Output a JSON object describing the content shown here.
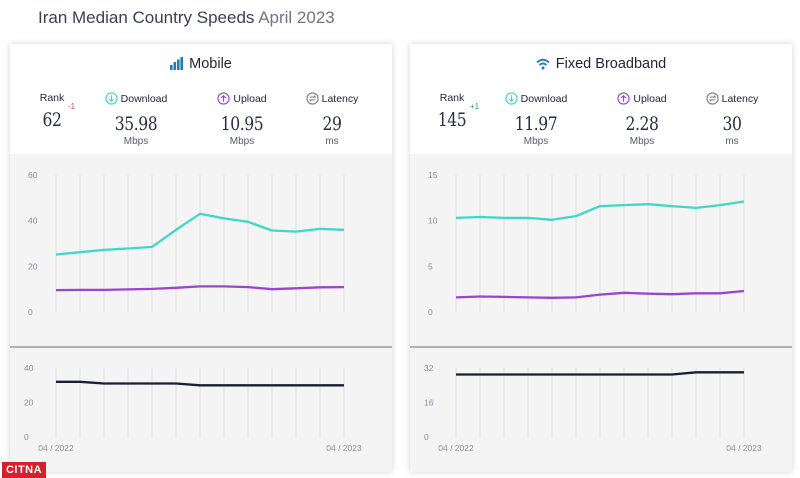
{
  "header": {
    "title": "Iran Median Country Speeds",
    "date": "April 2023"
  },
  "colors": {
    "download": "#3fd8c6",
    "upload": "#9b45cf",
    "latency": "#1b1d33"
  },
  "panels": [
    {
      "title": "Mobile",
      "icon": "signal-bars-icon",
      "metrics": {
        "rank": {
          "label": "Rank",
          "value": "62",
          "delta": "-1"
        },
        "download": {
          "label": "Download",
          "value": "35.98",
          "unit": "Mbps"
        },
        "upload": {
          "label": "Upload",
          "value": "10.95",
          "unit": "Mbps"
        },
        "latency": {
          "label": "Latency",
          "value": "29",
          "unit": "ms"
        }
      }
    },
    {
      "title": "Fixed Broadband",
      "icon": "wifi-icon",
      "metrics": {
        "rank": {
          "label": "Rank",
          "value": "145",
          "delta": "+1"
        },
        "download": {
          "label": "Download",
          "value": "11.97",
          "unit": "Mbps"
        },
        "upload": {
          "label": "Upload",
          "value": "2.28",
          "unit": "Mbps"
        },
        "latency": {
          "label": "Latency",
          "value": "30",
          "unit": "ms"
        }
      }
    }
  ],
  "chart_data": [
    {
      "type": "line",
      "panel": "Mobile",
      "x": [
        "04 / 2022",
        "05 / 2022",
        "06 / 2022",
        "07 / 2022",
        "08 / 2022",
        "09 / 2022",
        "10 / 2022",
        "11 / 2022",
        "12 / 2022",
        "01 / 2023",
        "02 / 2023",
        "03 / 2023",
        "04 / 2023"
      ],
      "x_tick_labels": [
        "04 / 2022",
        "04 / 2023"
      ],
      "ylim": [
        0,
        60
      ],
      "y_ticks": [
        "0",
        "20",
        "40",
        "60"
      ],
      "series": [
        {
          "name": "Download",
          "values": [
            25.2,
            26.2,
            27.2,
            27.8,
            28.5,
            36,
            43,
            41,
            39.5,
            35.7,
            35.2,
            36.4,
            36
          ]
        },
        {
          "name": "Upload",
          "values": [
            9.6,
            9.7,
            9.7,
            9.9,
            10.1,
            10.6,
            11.2,
            11.2,
            10.9,
            10,
            10.4,
            10.8,
            10.9
          ]
        }
      ],
      "latency": {
        "ylim": [
          0,
          40
        ],
        "y_ticks": [
          "0",
          "20",
          "40"
        ],
        "values": [
          32,
          32,
          31,
          31,
          31,
          31,
          30,
          30,
          30,
          30,
          30,
          30,
          30
        ]
      }
    },
    {
      "type": "line",
      "panel": "Fixed Broadband",
      "x": [
        "04 / 2022",
        "05 / 2022",
        "06 / 2022",
        "07 / 2022",
        "08 / 2022",
        "09 / 2022",
        "10 / 2022",
        "11 / 2022",
        "12 / 2022",
        "01 / 2023",
        "02 / 2023",
        "03 / 2023",
        "04 / 2023"
      ],
      "x_tick_labels": [
        "04 / 2022",
        "04 / 2023"
      ],
      "ylim": [
        0,
        15
      ],
      "y_ticks": [
        "0",
        "5",
        "10",
        "15"
      ],
      "series": [
        {
          "name": "Download",
          "values": [
            10.3,
            10.4,
            10.3,
            10.3,
            10.1,
            10.5,
            11.6,
            11.7,
            11.8,
            11.6,
            11.4,
            11.7,
            12.1
          ]
        },
        {
          "name": "Upload",
          "values": [
            1.6,
            1.7,
            1.65,
            1.6,
            1.55,
            1.6,
            1.9,
            2.1,
            2.0,
            1.95,
            2.05,
            2.05,
            2.3
          ]
        }
      ],
      "latency": {
        "ylim": [
          0,
          32
        ],
        "y_ticks": [
          "0",
          "16",
          "32"
        ],
        "values": [
          29,
          29,
          29,
          29,
          29,
          29,
          29,
          29,
          29,
          29,
          30,
          30,
          30
        ]
      }
    }
  ],
  "watermark": "CITNA"
}
